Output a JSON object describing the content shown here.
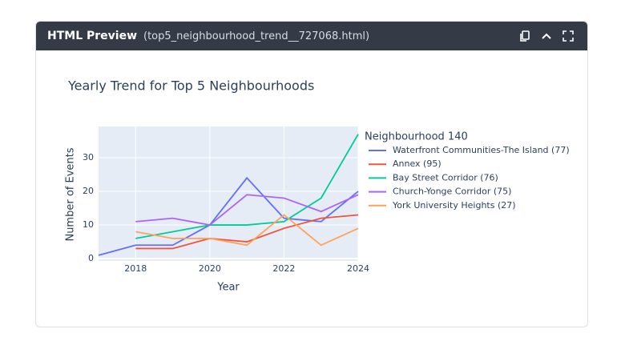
{
  "header": {
    "title": "HTML Preview",
    "filename": "(top5_neighbourhood_trend__727068.html)"
  },
  "chart_data": {
    "type": "line",
    "title": "Yearly Trend for Top 5 Neighbourhoods",
    "x_label": "Year",
    "y_label": "Number of Events",
    "legend_title": "Neighbourhood 140",
    "x": [
      2017,
      2018,
      2019,
      2020,
      2021,
      2022,
      2023,
      2024
    ],
    "xlim": [
      2017,
      2024
    ],
    "xticks": [
      2018,
      2020,
      2022,
      2024
    ],
    "ylim": [
      -0.7,
      39.3
    ],
    "yticks": [
      0,
      10,
      20,
      30
    ],
    "grid": true,
    "series": [
      {
        "name": "Waterfront Communities-The Island (77)",
        "color": "#636efa",
        "values": [
          1,
          4,
          4,
          10,
          24,
          12,
          11,
          20
        ]
      },
      {
        "name": "Annex (95)",
        "color": "#ef553b",
        "values": [
          null,
          3,
          3,
          6,
          5,
          9,
          12,
          13
        ]
      },
      {
        "name": "Bay Street Corridor (76)",
        "color": "#00cc96",
        "values": [
          null,
          6,
          8,
          10,
          10,
          11,
          18,
          37
        ]
      },
      {
        "name": "Church-Yonge Corridor (75)",
        "color": "#ab63fa",
        "values": [
          null,
          11,
          12,
          10,
          19,
          18,
          14,
          19
        ]
      },
      {
        "name": "York University Heights (27)",
        "color": "#ffa15a",
        "values": [
          null,
          8,
          6,
          6,
          4,
          13,
          4,
          9
        ]
      }
    ]
  }
}
